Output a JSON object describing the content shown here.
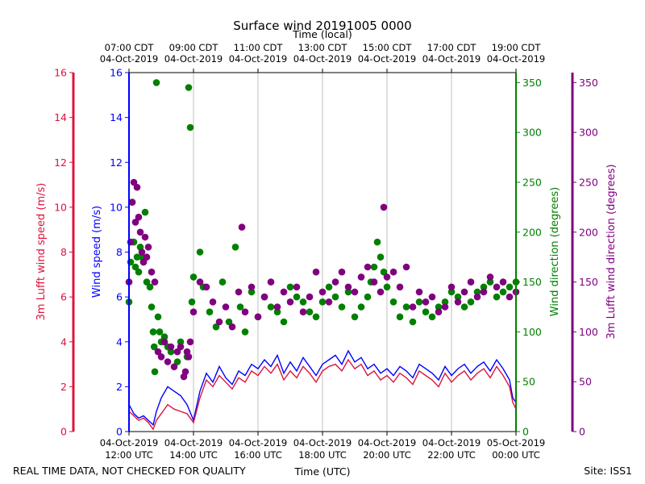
{
  "chart_data": {
    "type": "scatter",
    "title": "Surface wind 20191005 0000",
    "top_axis_label": "Time (local)",
    "bottom_axis_label": "Time (UTC)",
    "footer_left": "REAL TIME DATA, NOT CHECKED FOR QUALITY",
    "footer_right": "Site: ISS1",
    "x_range_hours_utc": [
      12,
      24
    ],
    "top_ticks": [
      {
        "h": 12,
        "time": "07:00 CDT",
        "date": "04-Oct-2019"
      },
      {
        "h": 14,
        "time": "09:00 CDT",
        "date": "04-Oct-2019"
      },
      {
        "h": 16,
        "time": "11:00 CDT",
        "date": "04-Oct-2019"
      },
      {
        "h": 18,
        "time": "13:00 CDT",
        "date": "04-Oct-2019"
      },
      {
        "h": 20,
        "time": "15:00 CDT",
        "date": "04-Oct-2019"
      },
      {
        "h": 22,
        "time": "17:00 CDT",
        "date": "04-Oct-2019"
      },
      {
        "h": 24,
        "time": "19:00 CDT",
        "date": "04-Oct-2019"
      }
    ],
    "bottom_ticks": [
      {
        "h": 12,
        "date": "04-Oct-2019",
        "time": "12:00 UTC"
      },
      {
        "h": 14,
        "date": "04-Oct-2019",
        "time": "14:00 UTC"
      },
      {
        "h": 16,
        "date": "04-Oct-2019",
        "time": "16:00 UTC"
      },
      {
        "h": 18,
        "date": "04-Oct-2019",
        "time": "18:00 UTC"
      },
      {
        "h": 20,
        "date": "04-Oct-2019",
        "time": "20:00 UTC"
      },
      {
        "h": 22,
        "date": "04-Oct-2019",
        "time": "22:00 UTC"
      },
      {
        "h": 24,
        "date": "05-Oct-2019",
        "time": "00:00 UTC"
      }
    ],
    "axes": {
      "lufft_speed": {
        "label": "3m Lufft wind speed (m/s)",
        "range": [
          0,
          16
        ],
        "ticks": [
          0,
          2,
          4,
          6,
          8,
          10,
          12,
          14,
          16
        ],
        "color": "#dc143c"
      },
      "wind_speed": {
        "label": "Wind speed (m/s)",
        "range": [
          0,
          16
        ],
        "ticks": [
          0,
          2,
          4,
          6,
          8,
          10,
          12,
          14,
          16
        ],
        "color": "#0000ff"
      },
      "wind_dir": {
        "label": "Wind direction (degrees)",
        "range": [
          0,
          360
        ],
        "ticks": [
          0,
          50,
          100,
          150,
          200,
          250,
          300,
          350
        ],
        "color": "#008000"
      },
      "lufft_dir": {
        "label": "3m Lufft wind direction (degrees)",
        "range": [
          0,
          360
        ],
        "ticks": [
          0,
          50,
          100,
          150,
          200,
          250,
          300,
          350
        ],
        "color": "#800080"
      }
    },
    "series": [
      {
        "name": "Wind speed",
        "axis": "wind_speed",
        "kind": "line",
        "color": "#0000ff",
        "x": [
          12.0,
          12.15,
          12.3,
          12.45,
          12.6,
          12.75,
          12.85,
          13.0,
          13.2,
          13.4,
          13.6,
          13.8,
          14.0,
          14.2,
          14.4,
          14.6,
          14.8,
          15.0,
          15.2,
          15.4,
          15.6,
          15.8,
          16.0,
          16.2,
          16.4,
          16.6,
          16.8,
          17.0,
          17.2,
          17.4,
          17.6,
          17.8,
          18.0,
          18.2,
          18.4,
          18.6,
          18.8,
          19.0,
          19.2,
          19.4,
          19.6,
          19.8,
          20.0,
          20.2,
          20.4,
          20.6,
          20.8,
          21.0,
          21.2,
          21.4,
          21.6,
          21.8,
          22.0,
          22.2,
          22.4,
          22.6,
          22.8,
          23.0,
          23.2,
          23.4,
          23.6,
          23.8,
          23.9,
          24.0
        ],
        "values": [
          1.2,
          0.8,
          0.6,
          0.7,
          0.5,
          0.3,
          0.9,
          1.5,
          2.0,
          1.8,
          1.6,
          1.2,
          0.5,
          1.8,
          2.6,
          2.2,
          2.9,
          2.4,
          2.1,
          2.7,
          2.5,
          3.0,
          2.8,
          3.2,
          2.9,
          3.4,
          2.6,
          3.1,
          2.7,
          3.3,
          2.9,
          2.5,
          3.0,
          3.2,
          3.4,
          3.0,
          3.6,
          3.1,
          3.3,
          2.8,
          3.0,
          2.6,
          2.8,
          2.5,
          2.9,
          2.7,
          2.4,
          3.0,
          2.8,
          2.6,
          2.3,
          2.9,
          2.5,
          2.8,
          3.0,
          2.6,
          2.9,
          3.1,
          2.7,
          3.2,
          2.8,
          2.3,
          1.5,
          1.3
        ]
      },
      {
        "name": "3m Lufft wind speed",
        "axis": "lufft_speed",
        "kind": "line",
        "color": "#dc143c",
        "x": [
          12.0,
          12.15,
          12.3,
          12.45,
          12.6,
          12.75,
          12.85,
          13.0,
          13.2,
          13.4,
          13.6,
          13.8,
          14.0,
          14.2,
          14.4,
          14.6,
          14.8,
          15.0,
          15.2,
          15.4,
          15.6,
          15.8,
          16.0,
          16.2,
          16.4,
          16.6,
          16.8,
          17.0,
          17.2,
          17.4,
          17.6,
          17.8,
          18.0,
          18.2,
          18.4,
          18.6,
          18.8,
          19.0,
          19.2,
          19.4,
          19.6,
          19.8,
          20.0,
          20.2,
          20.4,
          20.6,
          20.8,
          21.0,
          21.2,
          21.4,
          21.6,
          21.8,
          22.0,
          22.2,
          22.4,
          22.6,
          22.8,
          23.0,
          23.2,
          23.4,
          23.6,
          23.8,
          23.9,
          24.0
        ],
        "values": [
          0.9,
          0.7,
          0.5,
          0.6,
          0.4,
          0.1,
          0.5,
          0.8,
          1.2,
          1.0,
          0.9,
          0.8,
          0.4,
          1.5,
          2.3,
          2.0,
          2.5,
          2.2,
          1.9,
          2.4,
          2.2,
          2.7,
          2.5,
          2.9,
          2.6,
          3.0,
          2.3,
          2.7,
          2.4,
          2.9,
          2.6,
          2.2,
          2.7,
          2.9,
          3.0,
          2.7,
          3.2,
          2.8,
          3.0,
          2.5,
          2.7,
          2.3,
          2.5,
          2.2,
          2.6,
          2.4,
          2.1,
          2.7,
          2.5,
          2.3,
          2.0,
          2.6,
          2.2,
          2.5,
          2.7,
          2.3,
          2.6,
          2.8,
          2.4,
          2.9,
          2.5,
          2.0,
          1.3,
          1.0
        ]
      },
      {
        "name": "Wind direction",
        "axis": "wind_dir",
        "kind": "scatter",
        "color": "#008000",
        "x": [
          12.0,
          12.05,
          12.1,
          12.15,
          12.2,
          12.25,
          12.3,
          12.35,
          12.4,
          12.45,
          12.5,
          12.55,
          12.65,
          12.7,
          12.75,
          12.78,
          12.8,
          12.85,
          12.9,
          12.95,
          13.0,
          13.1,
          13.2,
          13.3,
          13.5,
          13.6,
          13.8,
          13.85,
          13.9,
          13.95,
          14.0,
          14.2,
          14.3,
          14.5,
          14.7,
          14.9,
          15.1,
          15.3,
          15.45,
          15.6,
          15.8,
          16.0,
          16.2,
          16.4,
          16.6,
          16.8,
          17.0,
          17.2,
          17.4,
          17.6,
          17.8,
          18.0,
          18.2,
          18.4,
          18.6,
          18.8,
          19.0,
          19.2,
          19.4,
          19.5,
          19.6,
          19.7,
          19.8,
          19.9,
          20.0,
          20.2,
          20.4,
          20.6,
          20.8,
          21.0,
          21.2,
          21.4,
          21.6,
          21.8,
          22.0,
          22.2,
          22.4,
          22.6,
          22.8,
          23.0,
          23.2,
          23.4,
          23.6,
          23.8,
          24.0
        ],
        "values": [
          130,
          170,
          230,
          190,
          165,
          175,
          160,
          185,
          175,
          170,
          220,
          150,
          145,
          125,
          100,
          85,
          60,
          350,
          115,
          100,
          90,
          95,
          85,
          80,
          70,
          90,
          75,
          345,
          305,
          130,
          155,
          180,
          145,
          120,
          105,
          150,
          110,
          185,
          125,
          100,
          140,
          115,
          135,
          125,
          120,
          110,
          145,
          135,
          130,
          120,
          115,
          130,
          145,
          135,
          125,
          140,
          115,
          125,
          135,
          150,
          165,
          190,
          175,
          160,
          145,
          130,
          115,
          125,
          110,
          130,
          120,
          115,
          125,
          130,
          140,
          135,
          125,
          130,
          140,
          145,
          150,
          135,
          140,
          145,
          150
        ]
      },
      {
        "name": "3m Lufft wind direction",
        "axis": "lufft_dir",
        "kind": "scatter",
        "color": "#800080",
        "x": [
          12.0,
          12.05,
          12.1,
          12.15,
          12.2,
          12.25,
          12.3,
          12.35,
          12.4,
          12.45,
          12.5,
          12.55,
          12.6,
          12.7,
          12.8,
          12.9,
          13.0,
          13.1,
          13.2,
          13.3,
          13.4,
          13.5,
          13.6,
          13.7,
          13.75,
          13.8,
          13.85,
          13.9,
          14.0,
          14.2,
          14.4,
          14.6,
          14.8,
          15.0,
          15.2,
          15.4,
          15.5,
          15.6,
          15.8,
          16.0,
          16.2,
          16.4,
          16.6,
          16.8,
          17.0,
          17.2,
          17.4,
          17.6,
          17.8,
          18.0,
          18.2,
          18.4,
          18.6,
          18.8,
          19.0,
          19.2,
          19.4,
          19.6,
          19.8,
          19.9,
          20.0,
          20.2,
          20.4,
          20.6,
          20.8,
          21.0,
          21.2,
          21.4,
          21.6,
          21.8,
          22.0,
          22.2,
          22.4,
          22.6,
          22.8,
          23.0,
          23.2,
          23.4,
          23.6,
          23.8,
          24.0
        ],
        "values": [
          150,
          190,
          230,
          250,
          210,
          245,
          215,
          200,
          180,
          170,
          195,
          175,
          185,
          160,
          150,
          80,
          75,
          90,
          70,
          85,
          65,
          80,
          85,
          55,
          60,
          80,
          75,
          90,
          120,
          150,
          145,
          130,
          110,
          125,
          105,
          140,
          205,
          120,
          145,
          115,
          135,
          150,
          125,
          140,
          130,
          145,
          120,
          135,
          160,
          140,
          130,
          150,
          160,
          145,
          140,
          155,
          165,
          150,
          140,
          225,
          155,
          160,
          145,
          165,
          125,
          140,
          130,
          135,
          120,
          125,
          145,
          130,
          140,
          150,
          135,
          140,
          155,
          145,
          150,
          135,
          140
        ]
      }
    ]
  }
}
